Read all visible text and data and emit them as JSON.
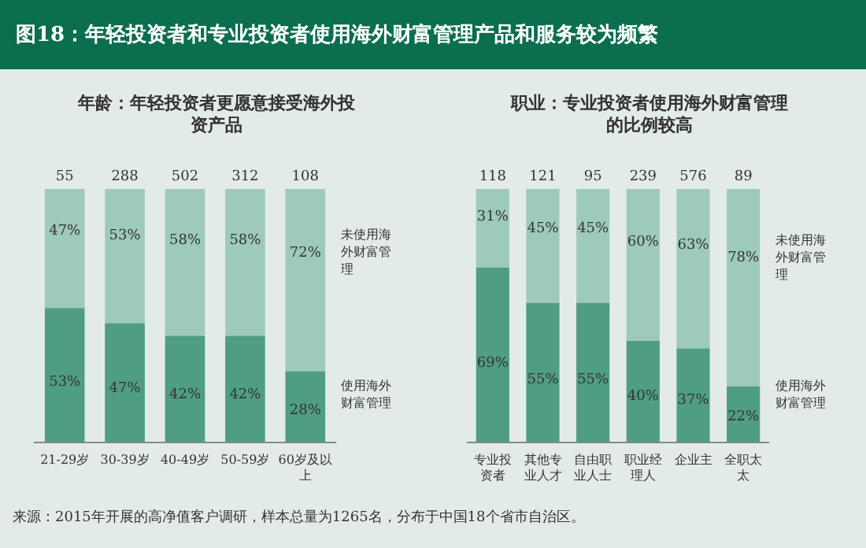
{
  "chart_data": [
    {
      "type": "bar",
      "title": "图18：年轻投资者和专业投资者使用海外财富管理产品和服务较为频繁",
      "subtitle": "年龄：年轻投资者更愿意接受海外投资产品",
      "categories": [
        "21-29岁",
        "30-39岁",
        "40-49岁",
        "50-59岁",
        "60岁及以上"
      ],
      "stacked": true,
      "tick_labels": "x",
      "legend": "right",
      "grid": false,
      "series": [
        {
          "name": "使用海外财富管理",
          "color": "#4f9d85",
          "values": [
            53,
            47,
            42,
            42,
            28
          ],
          "value_labels": [
            "53%",
            "47%",
            "42%",
            "42%",
            "28%"
          ]
        },
        {
          "name": "未使用海外财富管理",
          "color": "#9ecab9",
          "values": [
            47,
            53,
            58,
            58,
            72
          ],
          "value_labels": [
            "47%",
            "53%",
            "58%",
            "58%",
            "72%"
          ]
        }
      ],
      "annotations": [
        "55",
        "288",
        "502",
        "312",
        "108"
      ]
    },
    {
      "type": "bar",
      "subtitle": "职业：专业投资者使用海外财富管理的比例较高",
      "categories": [
        "专业投资者",
        "其他专业人才",
        "自由职业人士",
        "职业经理人",
        "企业主",
        "全职太太"
      ],
      "stacked": true,
      "tick_labels": "x",
      "legend": "right",
      "grid": false,
      "series": [
        {
          "name": "使用海外财富管理",
          "color": "#4f9d85",
          "values": [
            69,
            55,
            55,
            40,
            37,
            22
          ],
          "value_labels": [
            "69%",
            "55%",
            "55%",
            "40%",
            "37%",
            "22%"
          ]
        },
        {
          "name": "未使用海外财富管理",
          "color": "#9ecab9",
          "values": [
            31,
            45,
            45,
            60,
            63,
            78
          ],
          "value_labels": [
            "31%",
            "45%",
            "45%",
            "60%",
            "63%",
            "78%"
          ]
        }
      ],
      "annotations": [
        "118",
        "121",
        "95",
        "239",
        "576",
        "89",
        "来源：2015年开展的高净值客户调研，样本总量为1265名，分布于中国18个省市自治区。"
      ]
    }
  ]
}
